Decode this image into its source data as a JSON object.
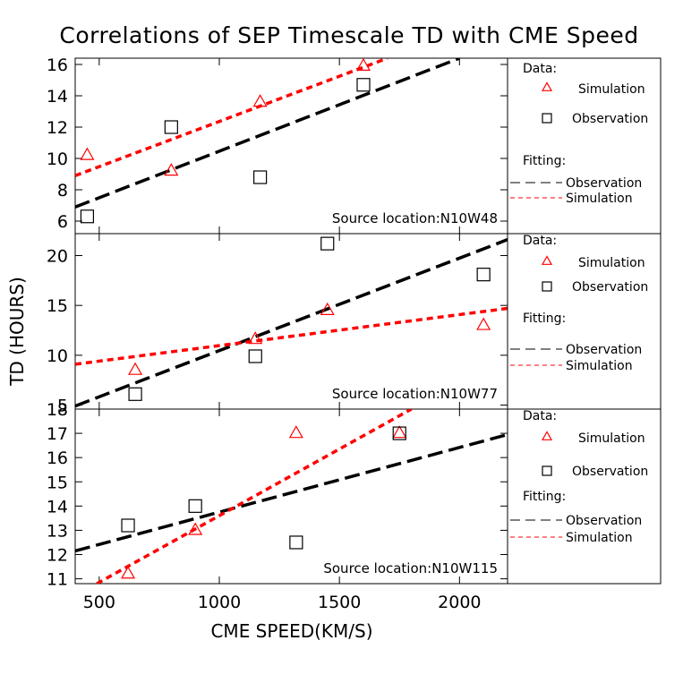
{
  "figure": {
    "title": "Correlations of SEP Timescale TD with CME Speed",
    "xlabel": "CME SPEED(KM/S)",
    "ylabel": "TD (HOURS)"
  },
  "legend": {
    "data_header": "Data:",
    "simulation": "Simulation",
    "observation": "Observation",
    "fitting_header": "Fitting:",
    "fit_observation": "Observation",
    "fit_simulation": "Simulation"
  },
  "colors": {
    "simulation": "#ff0000",
    "observation": "#000000"
  },
  "chart_data": [
    {
      "type": "scatter",
      "panel": "top",
      "annotation": "Source location:N10W48",
      "xlim": [
        400,
        2200
      ],
      "ylim": [
        5.2,
        16.4
      ],
      "xticks": [
        500,
        1000,
        1500,
        2000
      ],
      "yticks": [
        6,
        8,
        10,
        12,
        14,
        16
      ],
      "series": [
        {
          "name": "Simulation",
          "marker": "triangle",
          "color": "#ff0000",
          "points": [
            [
              450,
              10.2
            ],
            [
              800,
              9.2
            ],
            [
              1170,
              13.6
            ],
            [
              1600,
              15.9
            ]
          ]
        },
        {
          "name": "Observation",
          "marker": "square",
          "color": "#000000",
          "points": [
            [
              450,
              6.3
            ],
            [
              800,
              12.0
            ],
            [
              1170,
              8.8
            ],
            [
              1600,
              14.7
            ]
          ]
        }
      ],
      "fits": [
        {
          "name": "Observation",
          "color": "#000000",
          "dash": "long",
          "points": [
            [
              400,
              6.9
            ],
            [
              2000,
              16.4
            ]
          ]
        },
        {
          "name": "Simulation",
          "color": "#ff0000",
          "dash": "short",
          "points": [
            [
              400,
              8.9
            ],
            [
              1700,
              16.4
            ]
          ]
        }
      ]
    },
    {
      "type": "scatter",
      "panel": "middle",
      "annotation": "Source location:N10W77",
      "xlim": [
        400,
        2200
      ],
      "ylim": [
        4.6,
        22.2
      ],
      "xticks": [
        500,
        1000,
        1500,
        2000
      ],
      "yticks": [
        5,
        10,
        15,
        20
      ],
      "series": [
        {
          "name": "Simulation",
          "marker": "triangle",
          "color": "#ff0000",
          "points": [
            [
              650,
              8.5
            ],
            [
              1150,
              11.6
            ],
            [
              1450,
              14.5
            ],
            [
              2100,
              13.0
            ]
          ]
        },
        {
          "name": "Observation",
          "marker": "square",
          "color": "#000000",
          "points": [
            [
              650,
              6.1
            ],
            [
              1150,
              9.9
            ],
            [
              1450,
              21.2
            ],
            [
              2100,
              18.1
            ]
          ]
        }
      ],
      "fits": [
        {
          "name": "Observation",
          "color": "#000000",
          "dash": "long",
          "points": [
            [
              400,
              4.9
            ],
            [
              2200,
              21.6
            ]
          ]
        },
        {
          "name": "Simulation",
          "color": "#ff0000",
          "dash": "short",
          "points": [
            [
              400,
              9.1
            ],
            [
              2200,
              14.7
            ]
          ]
        }
      ]
    },
    {
      "type": "scatter",
      "panel": "bottom",
      "annotation": "Source location:N10W115",
      "xlim": [
        400,
        2200
      ],
      "ylim": [
        10.8,
        18.0
      ],
      "xticks": [
        500,
        1000,
        1500,
        2000
      ],
      "yticks": [
        11,
        12,
        13,
        14,
        15,
        16,
        17,
        18
      ],
      "series": [
        {
          "name": "Simulation",
          "marker": "triangle",
          "color": "#ff0000",
          "points": [
            [
              620,
              11.2
            ],
            [
              900,
              13.0
            ],
            [
              1320,
              17.0
            ],
            [
              1750,
              17.0
            ]
          ]
        },
        {
          "name": "Observation",
          "marker": "square",
          "color": "#000000",
          "points": [
            [
              620,
              13.2
            ],
            [
              900,
              14.0
            ],
            [
              1320,
              12.5
            ],
            [
              1750,
              17.0
            ]
          ]
        }
      ],
      "fits": [
        {
          "name": "Observation",
          "color": "#000000",
          "dash": "long",
          "points": [
            [
              400,
              12.15
            ],
            [
              2200,
              16.95
            ]
          ]
        },
        {
          "name": "Simulation",
          "color": "#ff0000",
          "dash": "short",
          "points": [
            [
              490,
              10.8
            ],
            [
              1800,
              18.0
            ]
          ]
        }
      ]
    }
  ]
}
